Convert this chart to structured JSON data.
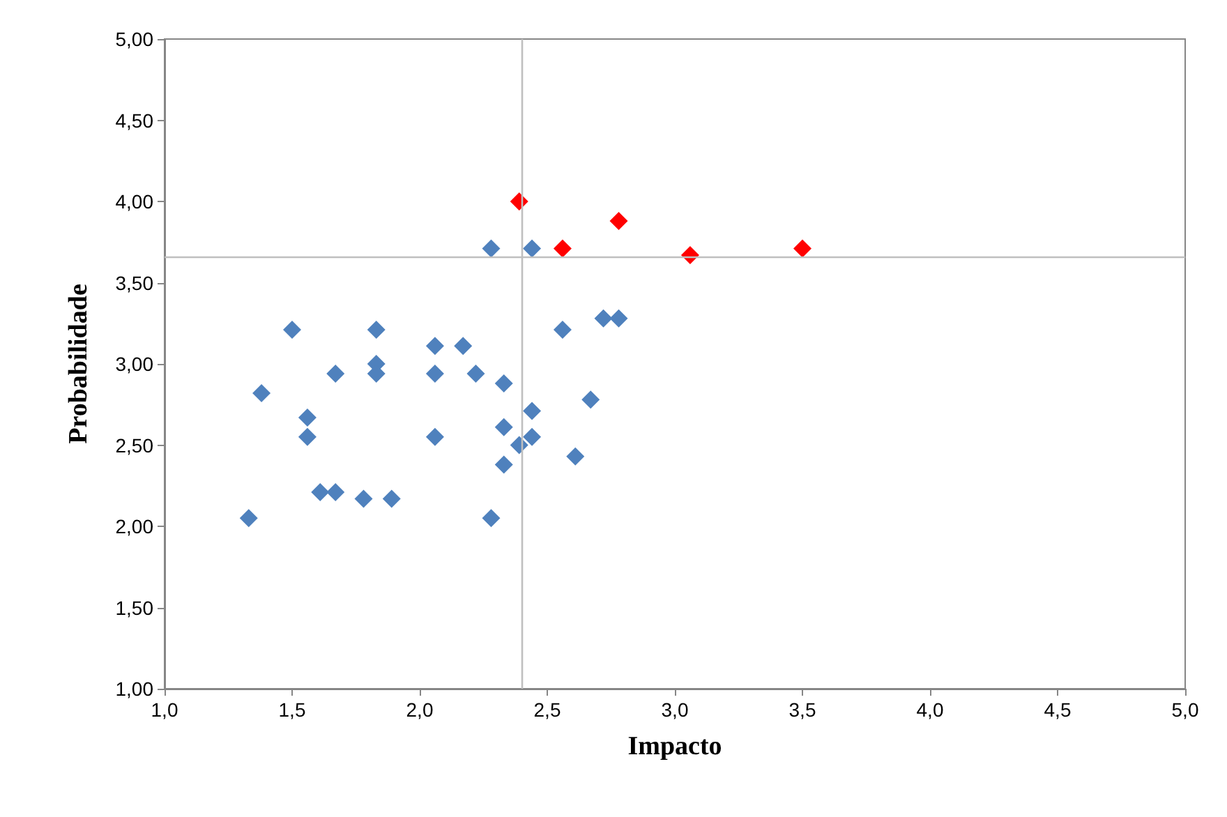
{
  "chart_data": {
    "type": "scatter",
    "xlabel": "Impacto",
    "ylabel": "Probabilidade",
    "marker": "diamond",
    "grid": false,
    "xlim": [
      1,
      5
    ],
    "xticks": [
      {
        "value": 1,
        "label": "1,0"
      },
      {
        "value": 1.5,
        "label": "1,5"
      },
      {
        "value": 2,
        "label": "2,0"
      },
      {
        "value": 2.5,
        "label": "2,5"
      },
      {
        "value": 3,
        "label": "3,0"
      },
      {
        "value": 3.5,
        "label": "3,5"
      },
      {
        "value": 4,
        "label": "4,0"
      },
      {
        "value": 4.5,
        "label": "4,5"
      },
      {
        "value": 5,
        "label": "5,0"
      }
    ],
    "ylim": [
      1,
      5
    ],
    "yticks": [
      {
        "value": 1,
        "label": "1,00"
      },
      {
        "value": 1.5,
        "label": "1,50"
      },
      {
        "value": 2,
        "label": "2,00"
      },
      {
        "value": 2.5,
        "label": "2,50"
      },
      {
        "value": 3,
        "label": "3,00"
      },
      {
        "value": 3.5,
        "label": "3,50"
      },
      {
        "value": 4,
        "label": "4,00"
      },
      {
        "value": 4.5,
        "label": "4,50"
      },
      {
        "value": 5,
        "label": "5,00"
      }
    ],
    "series": [
      {
        "color": "#4f81bd",
        "x": [
          1.33,
          1.38,
          1.5,
          1.56,
          1.56,
          1.61,
          1.67,
          1.67,
          1.78,
          1.89,
          1.83,
          1.83,
          1.83,
          2.06,
          2.06,
          2.06,
          2.17,
          2.22,
          2.33,
          2.33,
          2.33,
          2.39,
          2.44,
          2.44,
          2.28,
          2.61,
          2.67,
          2.56,
          2.72,
          2.78,
          2.28,
          2.44
        ],
        "values": [
          2.05,
          2.82,
          3.21,
          2.67,
          2.55,
          2.21,
          2.21,
          2.94,
          2.17,
          2.17,
          3.21,
          3.0,
          2.94,
          3.11,
          2.94,
          2.55,
          3.11,
          2.94,
          2.88,
          2.61,
          2.38,
          2.5,
          2.71,
          2.55,
          2.05,
          2.43,
          2.78,
          3.21,
          3.28,
          3.28,
          3.71,
          3.71
        ]
      },
      {
        "color": "#ff0000",
        "x": [
          2.39,
          2.56,
          2.78,
          3.06,
          3.5
        ],
        "values": [
          4.0,
          3.71,
          3.88,
          3.67,
          3.71
        ]
      }
    ],
    "ref_lines": [
      {
        "axis": "x",
        "value": 2.4,
        "color": "#bfbfbf"
      },
      {
        "axis": "y",
        "value": 3.66,
        "color": "#bfbfbf"
      }
    ]
  }
}
